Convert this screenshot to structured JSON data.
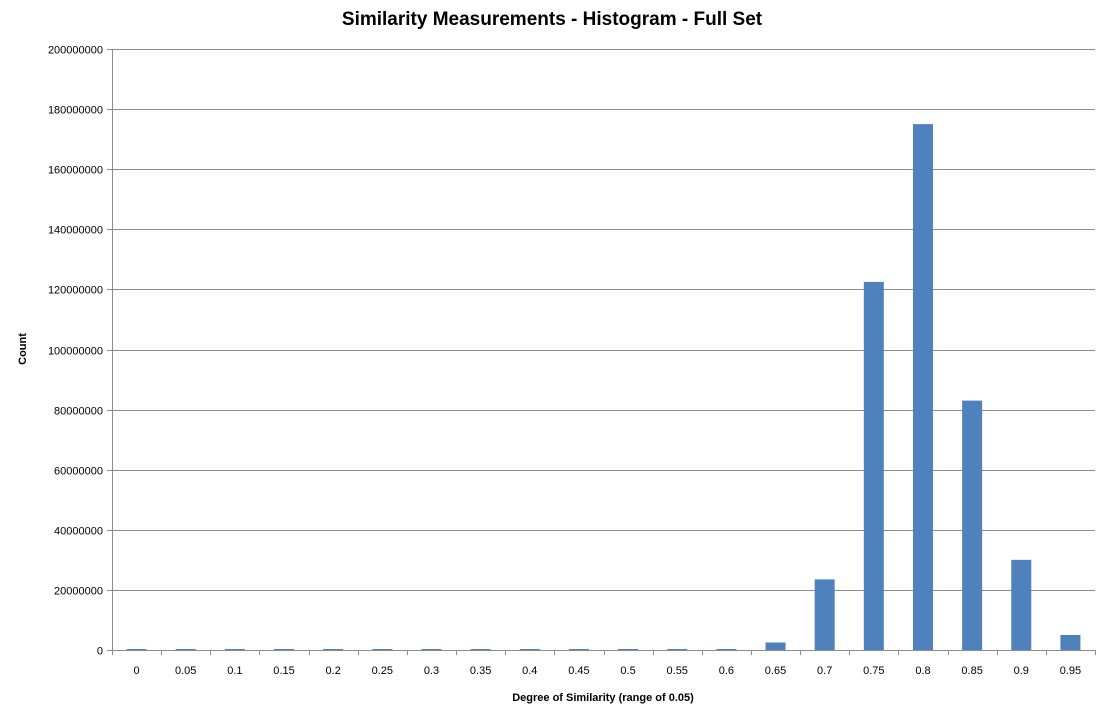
{
  "chart_data": {
    "type": "bar",
    "title": "Similarity Measurements - Histogram - Full Set",
    "xlabel": "Degree of Similarity  (range of 0.05)",
    "ylabel": "Count",
    "categories": [
      "0",
      "0.05",
      "0.1",
      "0.15",
      "0.2",
      "0.25",
      "0.3",
      "0.35",
      "0.4",
      "0.45",
      "0.5",
      "0.55",
      "0.6",
      "0.65",
      "0.7",
      "0.75",
      "0.8",
      "0.85",
      "0.9",
      "0.95"
    ],
    "series": [
      {
        "values": [
          300000,
          100000,
          100000,
          300000,
          300000,
          300000,
          300000,
          300000,
          300000,
          300000,
          300000,
          300000,
          300000,
          2500000,
          23500000,
          122500000,
          175000000,
          83000000,
          30000000,
          5000000
        ]
      }
    ],
    "ylim": [
      0,
      200000000
    ],
    "yticks": [
      "0",
      "20000000",
      "40000000",
      "60000000",
      "80000000",
      "100000000",
      "120000000",
      "140000000",
      "160000000",
      "180000000",
      "200000000"
    ],
    "grid": true,
    "legend": "none",
    "bar_color": "#4f81bd"
  }
}
